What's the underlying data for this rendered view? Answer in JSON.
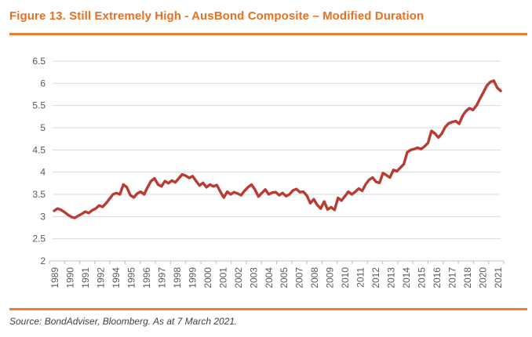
{
  "header": {
    "title": "Figure 13. Still Extremely High - AusBond Composite – Modified Duration"
  },
  "footer": {
    "source": "Source: BondAdviser, Bloomberg. As at 7 March 2021."
  },
  "colors": {
    "accent_orange": "#ED7D31",
    "title_orange": "#E8701F",
    "line_red": "#B93B31",
    "grid_gray": "#D9D9D9",
    "axis_line_gray": "#BFBFBF",
    "axis_text_gray": "#595959"
  },
  "chart_data": {
    "type": "line",
    "title": "",
    "xlabel": "",
    "ylabel": "",
    "legend": "none",
    "grid": "horizontal",
    "ylim": [
      2,
      6.5
    ],
    "yticks": [
      "2",
      "2.5",
      "3",
      "3.5",
      "4",
      "4.5",
      "5",
      "5.5",
      "6",
      "6.5"
    ],
    "ytick_values": [
      2,
      2.5,
      3,
      3.5,
      4,
      4.5,
      5,
      5.5,
      6,
      6.5
    ],
    "xtick_labels": [
      "1989",
      "1990",
      "1991",
      "1992",
      "1994",
      "1995",
      "1996",
      "1997",
      "1998",
      "1999",
      "2000",
      "2001",
      "2002",
      "2003",
      "2004",
      "2005",
      "2007",
      "2008",
      "2009",
      "2010",
      "2011",
      "2012",
      "2013",
      "2014",
      "2015",
      "2016",
      "2017",
      "2018",
      "2020",
      "2021"
    ],
    "xrange": [
      1989.0,
      2021.3
    ],
    "series": [
      {
        "name": "AusBond Composite Modified Duration",
        "x": [
          1989.0,
          1989.25,
          1989.5,
          1989.75,
          1990.0,
          1990.25,
          1990.5,
          1990.75,
          1991.0,
          1991.25,
          1991.5,
          1991.75,
          1992.0,
          1992.25,
          1992.5,
          1992.75,
          1993.0,
          1993.25,
          1993.5,
          1993.75,
          1994.0,
          1994.25,
          1994.5,
          1994.75,
          1995.0,
          1995.25,
          1995.5,
          1995.75,
          1996.0,
          1996.25,
          1996.5,
          1996.75,
          1997.0,
          1997.25,
          1997.5,
          1997.75,
          1998.0,
          1998.25,
          1998.5,
          1998.75,
          1999.0,
          1999.25,
          1999.5,
          1999.75,
          2000.0,
          2000.25,
          2000.5,
          2000.75,
          2001.0,
          2001.25,
          2001.5,
          2001.75,
          2002.0,
          2002.25,
          2002.5,
          2002.75,
          2003.0,
          2003.25,
          2003.5,
          2003.75,
          2004.0,
          2004.25,
          2004.5,
          2004.75,
          2005.0,
          2005.25,
          2005.5,
          2005.75,
          2006.0,
          2006.25,
          2006.5,
          2006.75,
          2007.0,
          2007.25,
          2007.5,
          2007.75,
          2008.0,
          2008.25,
          2008.5,
          2008.75,
          2009.0,
          2009.25,
          2009.5,
          2009.75,
          2010.0,
          2010.25,
          2010.5,
          2010.75,
          2011.0,
          2011.25,
          2011.5,
          2011.75,
          2012.0,
          2012.25,
          2012.5,
          2012.75,
          2013.0,
          2013.25,
          2013.5,
          2013.75,
          2014.0,
          2014.25,
          2014.5,
          2014.75,
          2015.0,
          2015.25,
          2015.5,
          2015.75,
          2016.0,
          2016.25,
          2016.5,
          2016.75,
          2017.0,
          2017.25,
          2017.5,
          2017.75,
          2018.0,
          2018.25,
          2018.5,
          2018.75,
          2019.0,
          2019.25,
          2019.5,
          2019.75,
          2020.0,
          2020.25,
          2020.5,
          2020.75,
          2021.0,
          2021.25
        ],
        "values": [
          3.13,
          3.18,
          3.15,
          3.1,
          3.04,
          2.99,
          2.97,
          3.02,
          3.06,
          3.11,
          3.08,
          3.14,
          3.18,
          3.25,
          3.22,
          3.3,
          3.4,
          3.5,
          3.53,
          3.5,
          3.72,
          3.66,
          3.48,
          3.43,
          3.52,
          3.56,
          3.5,
          3.66,
          3.8,
          3.86,
          3.72,
          3.68,
          3.8,
          3.75,
          3.81,
          3.77,
          3.86,
          3.95,
          3.92,
          3.87,
          3.91,
          3.8,
          3.7,
          3.76,
          3.66,
          3.72,
          3.68,
          3.71,
          3.56,
          3.43,
          3.56,
          3.5,
          3.55,
          3.52,
          3.48,
          3.58,
          3.66,
          3.72,
          3.61,
          3.45,
          3.53,
          3.61,
          3.5,
          3.54,
          3.55,
          3.48,
          3.53,
          3.46,
          3.5,
          3.59,
          3.62,
          3.55,
          3.56,
          3.47,
          3.3,
          3.39,
          3.26,
          3.18,
          3.34,
          3.16,
          3.21,
          3.15,
          3.42,
          3.36,
          3.46,
          3.56,
          3.5,
          3.56,
          3.63,
          3.58,
          3.73,
          3.83,
          3.88,
          3.78,
          3.76,
          3.98,
          3.93,
          3.88,
          4.05,
          4.02,
          4.1,
          4.18,
          4.45,
          4.5,
          4.52,
          4.55,
          4.52,
          4.58,
          4.66,
          4.93,
          4.87,
          4.78,
          4.87,
          5.02,
          5.1,
          5.13,
          5.15,
          5.09,
          5.27,
          5.38,
          5.44,
          5.4,
          5.5,
          5.65,
          5.8,
          5.95,
          6.03,
          6.06,
          5.9,
          5.83
        ]
      }
    ]
  }
}
